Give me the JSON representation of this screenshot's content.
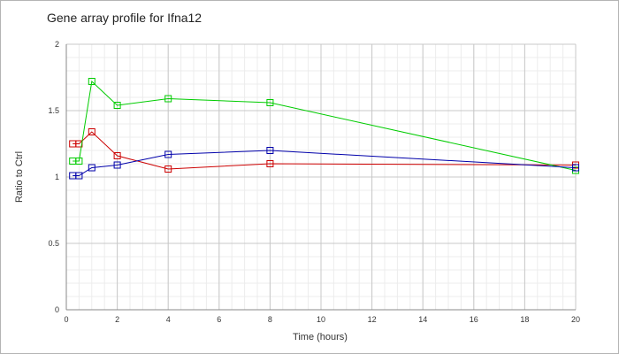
{
  "chart_data": {
    "type": "line",
    "title": "Gene array profile for Ifna12",
    "xlabel": "Time (hours)",
    "ylabel": "Ratio to Ctrl",
    "xlim": [
      0,
      20
    ],
    "ylim": [
      0,
      2
    ],
    "xticks": [
      0,
      2,
      4,
      6,
      8,
      10,
      12,
      14,
      16,
      18,
      20
    ],
    "yticks": [
      0,
      0.5,
      1,
      1.5,
      2
    ],
    "ytick_labels": [
      "0",
      "0.5",
      "1",
      "1.5",
      "2"
    ],
    "grid": true,
    "legend": "none",
    "series": [
      {
        "color": "#cc0000",
        "x": [
          0.25,
          0.5,
          1,
          2,
          4,
          8,
          20
        ],
        "y": [
          1.25,
          1.25,
          1.34,
          1.16,
          1.06,
          1.1,
          1.09
        ]
      },
      {
        "color": "#00cc00",
        "x": [
          0.25,
          0.5,
          1,
          2,
          4,
          8,
          20
        ],
        "y": [
          1.12,
          1.12,
          1.72,
          1.54,
          1.59,
          1.56,
          1.05
        ]
      },
      {
        "color": "#0000aa",
        "x": [
          0.25,
          0.5,
          1,
          2,
          4,
          8,
          20
        ],
        "y": [
          1.01,
          1.01,
          1.07,
          1.09,
          1.17,
          1.2,
          1.07
        ]
      }
    ]
  }
}
